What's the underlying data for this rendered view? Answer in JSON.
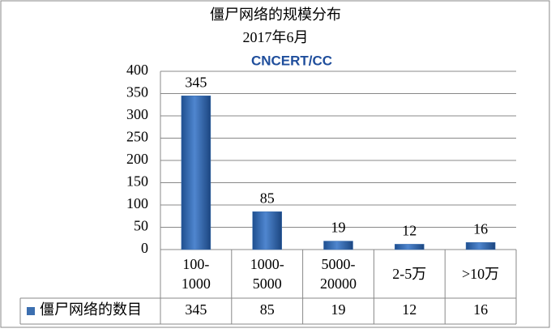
{
  "chart_data": {
    "type": "bar",
    "title": "僵尸网络的规模分布",
    "subtitle": "2017年6月",
    "logo_text": "CNCERT/CC",
    "categories": [
      "100-1000",
      "1000-5000",
      "5000-20000",
      "2-5万",
      ">10万"
    ],
    "series": [
      {
        "name": "僵尸网络的数目",
        "color": "#3c6fb0",
        "values": [
          345,
          85,
          19,
          12,
          16
        ]
      }
    ],
    "ylim": [
      0,
      400
    ],
    "yticks": [
      0,
      50,
      100,
      150,
      200,
      250,
      300,
      350,
      400
    ],
    "grid": true,
    "data_table": true
  }
}
